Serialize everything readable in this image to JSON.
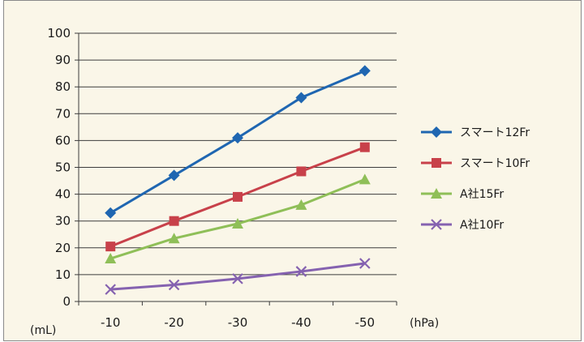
{
  "chart_data": {
    "type": "line",
    "categories": [
      "-10",
      "-20",
      "-30",
      "-40",
      "-50"
    ],
    "x_unit": "(hPa)",
    "y_unit": "(mL)",
    "ylim": [
      0,
      100
    ],
    "y_ticks": [
      "0",
      "10",
      "20",
      "30",
      "40",
      "50",
      "60",
      "70",
      "80",
      "90",
      "100"
    ],
    "grid": true,
    "legend_position": "right",
    "series": [
      {
        "name": "スマート12Fr",
        "color": "#1f66b1",
        "marker": "diamond",
        "values": [
          33,
          47,
          61,
          76,
          86
        ]
      },
      {
        "name": "スマート10Fr",
        "color": "#c8414a",
        "marker": "square",
        "values": [
          20.5,
          30,
          39,
          48.5,
          57.5
        ]
      },
      {
        "name": "A社15Fr",
        "color": "#8fbf58",
        "marker": "triangle",
        "values": [
          16,
          23.5,
          29,
          36,
          45.5
        ]
      },
      {
        "name": "A社10Fr",
        "color": "#8562b0",
        "marker": "x",
        "values": [
          4.5,
          6.2,
          8.5,
          11.2,
          14.2
        ]
      }
    ]
  }
}
